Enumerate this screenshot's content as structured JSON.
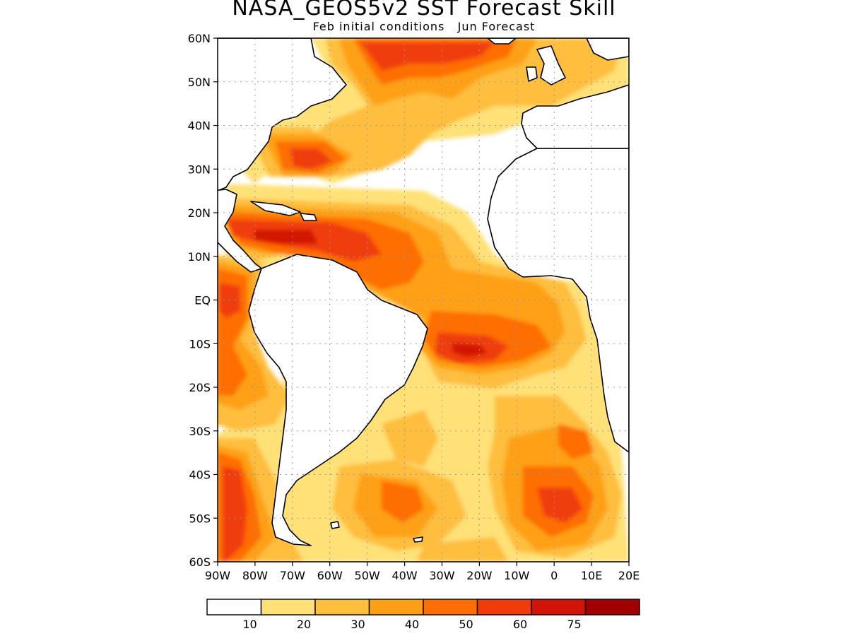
{
  "title": "NASA_GEOS5v2 SST Forecast Skill",
  "subtitle": "Feb initial conditions   Jun Forecast",
  "map": {
    "lat_labels": [
      "60N",
      "50N",
      "40N",
      "30N",
      "20N",
      "10N",
      "EQ",
      "10S",
      "20S",
      "30S",
      "40S",
      "50S",
      "60S"
    ],
    "lon_labels": [
      "90W",
      "80W",
      "70W",
      "60W",
      "50W",
      "40W",
      "30W",
      "20W",
      "10W",
      "0",
      "10E",
      "20E"
    ],
    "lat_range": [
      -60,
      60
    ],
    "lon_range": [
      -90,
      20
    ],
    "grid": "dotted",
    "colors": {
      "land": "#ffffff",
      "coast": "#000000",
      "grid": "#9a9a9a"
    }
  },
  "colorbar": {
    "colors": [
      "#ffffff",
      "#ffe178",
      "#ffbe3c",
      "#ffa014",
      "#ff6e00",
      "#f03c0a",
      "#d21405",
      "#a00000"
    ],
    "labels": [
      "10",
      "20",
      "30",
      "40",
      "50",
      "60",
      "75"
    ]
  }
}
